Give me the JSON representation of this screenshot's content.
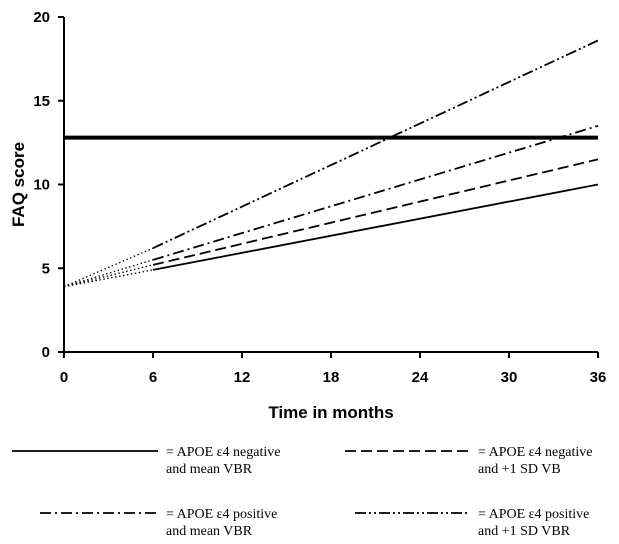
{
  "chart_data": {
    "type": "line",
    "xlabel": "Time in months",
    "ylabel": "FAQ score",
    "xlim": [
      0,
      36
    ],
    "ylim": [
      0,
      20
    ],
    "x_ticks": [
      0,
      6,
      12,
      18,
      24,
      30,
      36
    ],
    "y_ticks": [
      0,
      5,
      10,
      15,
      20
    ],
    "grid": false,
    "legend_position": "bottom",
    "x": [
      0,
      6,
      36
    ],
    "reference_line": {
      "y": 12.8
    },
    "series": [
      {
        "name": "= APOE ε4 negative and mean VBR",
        "legend_lines": [
          "= APOE ε4 negative",
          "and mean VBR"
        ],
        "values": [
          3.9,
          4.9,
          10.0
        ],
        "style": "solid"
      },
      {
        "name": "= APOE ε4 negative and +1 SD VB",
        "legend_lines": [
          "= APOE ε4 negative",
          "and +1 SD VB"
        ],
        "values": [
          3.9,
          5.2,
          11.5
        ],
        "style": "dashed"
      },
      {
        "name": "= APOE ε4 positive and mean VBR",
        "legend_lines": [
          "= APOE ε4 positive",
          "and mean VBR"
        ],
        "values": [
          3.9,
          5.5,
          13.5
        ],
        "style": "dashdot"
      },
      {
        "name": "= APOE ε4 positive and +1 SD VBR",
        "legend_lines": [
          "= APOE ε4 positive",
          "and +1 SD VBR"
        ],
        "values": [
          3.9,
          6.2,
          18.6
        ],
        "style": "dashdotdot"
      }
    ]
  }
}
